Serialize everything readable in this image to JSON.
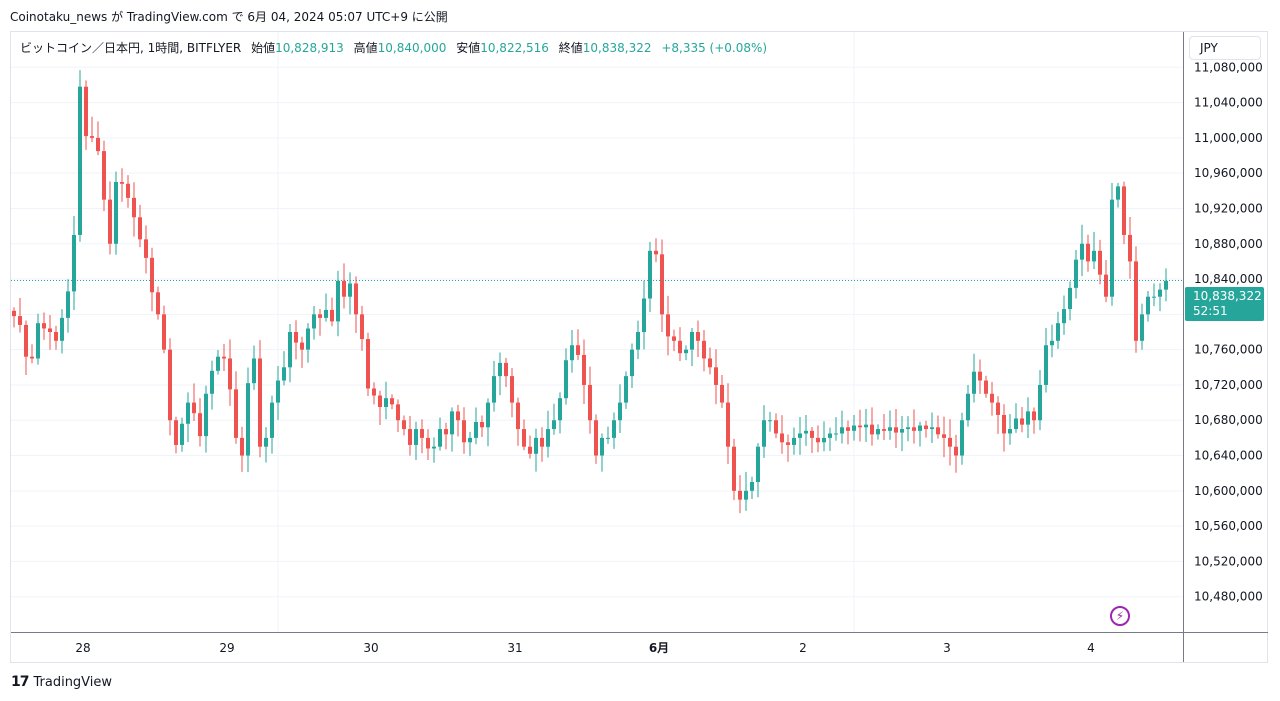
{
  "header": {
    "publish_line": "Coinotaku_news が TradingView.com で 6月 04, 2024 05:07 UTC+9 に公開"
  },
  "legend": {
    "symbol": "ビットコイン／日本円, 1時間, BITFLYER",
    "open_label": "始値",
    "open_value": "10,828,913",
    "high_label": "高値",
    "high_value": "10,840,000",
    "low_label": "安値",
    "low_value": "10,822,516",
    "close_label": "終値",
    "close_value": "10,838,322",
    "change": "+8,335 (+0.08%)"
  },
  "toolbar": {
    "currency": "JPY"
  },
  "price_tag": {
    "price": "10,838,322",
    "countdown": "52:51"
  },
  "footer": {
    "brand": "TradingView",
    "brand_mark": "17"
  },
  "colors": {
    "up": "#26a69a",
    "down": "#ef5350",
    "grid": "#f0f3fa",
    "price_line": "#26a69a"
  },
  "chart_data": {
    "type": "candlestick",
    "y_tick_labels": [
      "10,480,000",
      "10,520,000",
      "10,560,000",
      "10,600,000",
      "10,640,000",
      "10,680,000",
      "10,720,000",
      "10,760,000",
      "10,800,000",
      "10,840,000",
      "10,880,000",
      "10,920,000",
      "10,960,000",
      "11,000,000",
      "11,040,000",
      "11,080,000"
    ],
    "y_ticks": [
      10480000,
      10520000,
      10560000,
      10600000,
      10640000,
      10680000,
      10720000,
      10760000,
      10800000,
      10840000,
      10880000,
      10920000,
      10960000,
      11000000,
      11040000,
      11080000
    ],
    "x_tick_labels": [
      "28",
      "29",
      "30",
      "31",
      "6月",
      "2",
      "3",
      "4"
    ],
    "x_tick_bars": [
      11,
      35,
      59,
      83,
      107,
      131,
      155,
      179
    ],
    "ylim": [
      10440000,
      11120000
    ],
    "last_price": 10838322,
    "closes": [
      10798000,
      10788000,
      10752000,
      10750000,
      10790000,
      10784000,
      10780000,
      10770000,
      10796000,
      10826000,
      10890000,
      11058000,
      11002000,
      11000000,
      10985000,
      10930000,
      10880000,
      10950000,
      10948000,
      10932000,
      10910000,
      10885000,
      10864000,
      10825000,
      10800000,
      10760000,
      10680000,
      10652000,
      10676000,
      10700000,
      10688000,
      10662000,
      10710000,
      10736000,
      10752000,
      10750000,
      10715000,
      10660000,
      10640000,
      10722000,
      10750000,
      10650000,
      10660000,
      10700000,
      10725000,
      10740000,
      10780000,
      10768000,
      10760000,
      10784000,
      10800000,
      10796000,
      10805000,
      10792000,
      10838000,
      10820000,
      10835000,
      10800000,
      10772000,
      10716000,
      10708000,
      10695000,
      10705000,
      10698000,
      10680000,
      10670000,
      10652000,
      10670000,
      10660000,
      10648000,
      10650000,
      10670000,
      10664000,
      10690000,
      10680000,
      10655000,
      10660000,
      10678000,
      10672000,
      10700000,
      10730000,
      10745000,
      10730000,
      10700000,
      10670000,
      10650000,
      10642000,
      10660000,
      10650000,
      10670000,
      10680000,
      10705000,
      10748000,
      10765000,
      10754000,
      10720000,
      10680000,
      10640000,
      10660000,
      10660000,
      10680000,
      10700000,
      10730000,
      10760000,
      10780000,
      10818000,
      10872000,
      10868000,
      10800000,
      10775000,
      10770000,
      10756000,
      10760000,
      10780000,
      10770000,
      10750000,
      10740000,
      10720000,
      10700000,
      10650000,
      10600000,
      10590000,
      10600000,
      10610000,
      10650000,
      10680000,
      10680000,
      10665000,
      10655000,
      10652000,
      10660000,
      10665000,
      10668000,
      10660000,
      10655000,
      10660000,
      10665000,
      10665000,
      10672000,
      10668000,
      10674000,
      10672000,
      10675000,
      10664000,
      10670000,
      10668000,
      10672000,
      10666000,
      10670000,
      10672000,
      10668000,
      10674000,
      10670000,
      10672000,
      10664000,
      10660000,
      10650000,
      10640000,
      10680000,
      10710000,
      10735000,
      10725000,
      10710000,
      10700000,
      10686000,
      10665000,
      10670000,
      10682000,
      10675000,
      10690000,
      10680000,
      10720000,
      10765000,
      10770000,
      10790000,
      10806000,
      10830000,
      10862000,
      10880000,
      10860000,
      10872000,
      10845000,
      10820000,
      10930000,
      10945000,
      10890000,
      10860000,
      10770000,
      10800000,
      10820000,
      10820000,
      10828000,
      10838000
    ]
  }
}
